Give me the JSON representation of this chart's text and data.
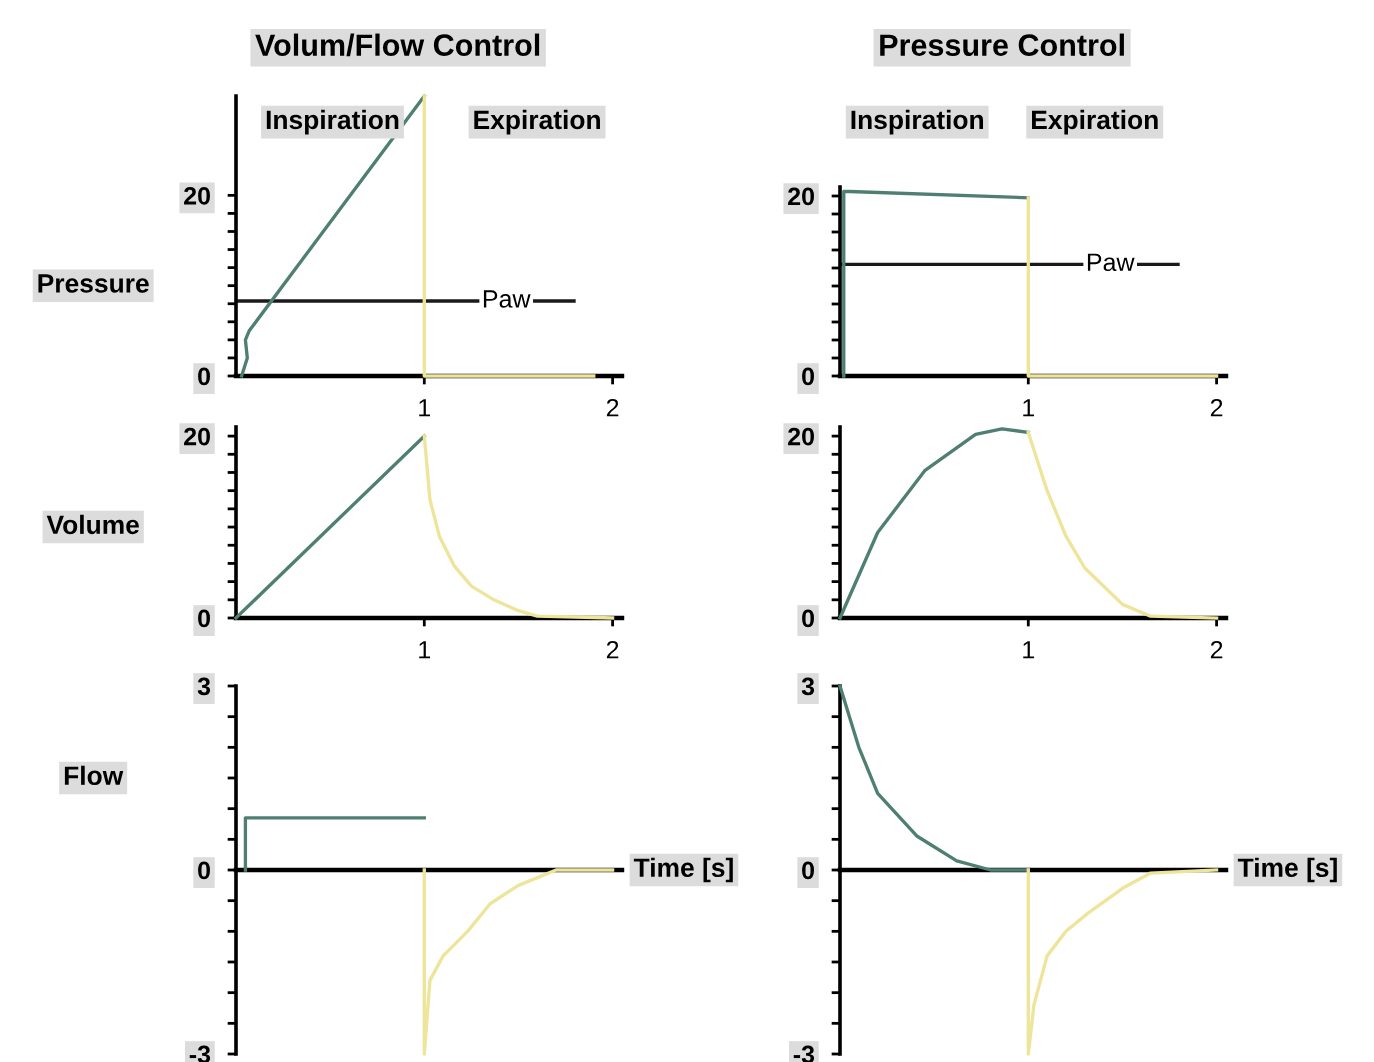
{
  "chart_data": [
    {
      "type": "line",
      "title": "Volum/Flow Control",
      "annotations": [
        "Inspiration",
        "Expiration"
      ],
      "ylabel": "Pressure",
      "xlim": [
        0,
        2.05
      ],
      "xticks": [
        1,
        2
      ],
      "ylim": [
        0,
        31
      ],
      "yticks": [
        0,
        {
          "value": 2,
          "label": null
        },
        {
          "value": 4,
          "label": null
        },
        {
          "value": 6,
          "label": null
        },
        {
          "value": 8,
          "label": null
        },
        {
          "value": 10,
          "label": null
        },
        {
          "value": 12,
          "label": null
        },
        {
          "value": 14,
          "label": null
        },
        {
          "value": 16,
          "label": null
        },
        {
          "value": 18,
          "label": null
        },
        20
      ],
      "ref_lines": [
        {
          "axis": "y",
          "value": 8.3,
          "label": "Paw",
          "color": "#1a1a1a"
        }
      ],
      "series": [
        {
          "color": "#4f7f73",
          "x": [
            0.03,
            0.06,
            0.05,
            0.07,
            1
          ],
          "values": [
            0,
            2,
            4,
            5,
            31
          ]
        },
        {
          "color": "#eee49a",
          "x": [
            1,
            1,
            1.9
          ],
          "values": [
            31,
            0,
            0
          ]
        }
      ]
    },
    {
      "type": "line",
      "title": "Pressure Control",
      "annotations": [
        "Inspiration",
        "Expiration"
      ],
      "xlim": [
        0,
        2.05
      ],
      "xticks": [
        1,
        2
      ],
      "ylim": [
        0,
        21
      ],
      "yticks": [
        0,
        {
          "value": 2,
          "label": null
        },
        {
          "value": 4,
          "label": null
        },
        {
          "value": 6,
          "label": null
        },
        {
          "value": 8,
          "label": null
        },
        {
          "value": 10,
          "label": null
        },
        {
          "value": 12,
          "label": null
        },
        {
          "value": 14,
          "label": null
        },
        {
          "value": 16,
          "label": null
        },
        {
          "value": 18,
          "label": null
        },
        20
      ],
      "ref_lines": [
        {
          "axis": "y",
          "value": 12.4,
          "label": "Paw",
          "color": "#1a1a1a"
        }
      ],
      "series": [
        {
          "color": "#4f7f73",
          "x": [
            0.02,
            0.02,
            0.05,
            1
          ],
          "values": [
            0,
            20.5,
            20.5,
            19.8
          ]
        },
        {
          "color": "#eee49a",
          "x": [
            1,
            1,
            2
          ],
          "values": [
            19.8,
            0,
            0
          ]
        }
      ]
    },
    {
      "type": "line",
      "ylabel": "Volume",
      "xlim": [
        0,
        2.05
      ],
      "xticks": [
        1,
        2
      ],
      "ylim": [
        0,
        21
      ],
      "yticks": [
        0,
        {
          "value": 2,
          "label": null
        },
        {
          "value": 4,
          "label": null
        },
        {
          "value": 6,
          "label": null
        },
        {
          "value": 8,
          "label": null
        },
        {
          "value": 10,
          "label": null
        },
        {
          "value": 12,
          "label": null
        },
        {
          "value": 14,
          "label": null
        },
        {
          "value": 16,
          "label": null
        },
        {
          "value": 18,
          "label": null
        },
        20
      ],
      "series": [
        {
          "color": "#4f7f73",
          "x": [
            0,
            1
          ],
          "values": [
            0,
            20
          ]
        },
        {
          "color": "#eee49a",
          "x": [
            1,
            1.03,
            1.08,
            1.16,
            1.25,
            1.37,
            1.5,
            1.6,
            2
          ],
          "values": [
            20,
            13,
            9,
            5.7,
            3.5,
            2,
            0.8,
            0.2,
            0
          ]
        }
      ]
    },
    {
      "type": "line",
      "xlim": [
        0,
        2.05
      ],
      "xticks": [
        1,
        2
      ],
      "ylim": [
        0,
        21
      ],
      "yticks": [
        0,
        {
          "value": 2,
          "label": null
        },
        {
          "value": 4,
          "label": null
        },
        {
          "value": 6,
          "label": null
        },
        {
          "value": 8,
          "label": null
        },
        {
          "value": 10,
          "label": null
        },
        {
          "value": 12,
          "label": null
        },
        {
          "value": 14,
          "label": null
        },
        {
          "value": 16,
          "label": null
        },
        {
          "value": 18,
          "label": null
        },
        20
      ],
      "series": [
        {
          "color": "#4f7f73",
          "x": [
            0,
            0.2,
            0.45,
            0.72,
            0.86,
            1
          ],
          "values": [
            0,
            9.4,
            16.2,
            20.2,
            20.8,
            20.4
          ]
        },
        {
          "color": "#eee49a",
          "x": [
            1,
            1.1,
            1.2,
            1.3,
            1.5,
            1.65,
            2
          ],
          "values": [
            20.4,
            14,
            9,
            5.5,
            1.5,
            0.2,
            0
          ]
        }
      ]
    },
    {
      "type": "line",
      "ylabel": "Flow",
      "xlabel": "Time [s]",
      "tick_labels": "y",
      "xlim": [
        0,
        2.05
      ],
      "ylim": [
        -3,
        3
      ],
      "yticks": [
        -3,
        {
          "value": -2.5,
          "label": null
        },
        {
          "value": -2,
          "label": null
        },
        {
          "value": -1.5,
          "label": null
        },
        {
          "value": -1,
          "label": null
        },
        {
          "value": -0.5,
          "label": null
        },
        0,
        {
          "value": 0.5,
          "label": null
        },
        {
          "value": 1,
          "label": null
        },
        {
          "value": 1.5,
          "label": null
        },
        {
          "value": 2,
          "label": null
        },
        {
          "value": 2.5,
          "label": null
        },
        3
      ],
      "series": [
        {
          "color": "#4f7f73",
          "x": [
            0.05,
            0.05,
            1
          ],
          "values": [
            0,
            0.85,
            0.85
          ]
        },
        {
          "color": "#eee49a",
          "x": [
            1,
            1,
            1.03,
            1.1,
            1.23,
            1.35,
            1.5,
            1.7,
            2
          ],
          "values": [
            0,
            -3,
            -1.8,
            -1.4,
            -1,
            -0.55,
            -0.25,
            0,
            0
          ]
        }
      ]
    },
    {
      "type": "line",
      "xlabel": "Time [s]",
      "tick_labels": "y",
      "xlim": [
        0,
        2.05
      ],
      "ylim": [
        -3,
        3
      ],
      "yticks": [
        -3,
        {
          "value": -2.5,
          "label": null
        },
        {
          "value": -2,
          "label": null
        },
        {
          "value": -1.5,
          "label": null
        },
        {
          "value": -1,
          "label": null
        },
        {
          "value": -0.5,
          "label": null
        },
        0,
        {
          "value": 0.5,
          "label": null
        },
        {
          "value": 1,
          "label": null
        },
        {
          "value": 1.5,
          "label": null
        },
        {
          "value": 2,
          "label": null
        },
        {
          "value": 2.5,
          "label": null
        },
        3
      ],
      "series": [
        {
          "color": "#4f7f73",
          "x": [
            0,
            0.05,
            0.1,
            0.2,
            0.41,
            0.62,
            0.8,
            1
          ],
          "values": [
            3,
            2.5,
            2,
            1.25,
            0.55,
            0.15,
            0,
            0
          ]
        },
        {
          "color": "#eee49a",
          "x": [
            1,
            1,
            1.03,
            1.1,
            1.2,
            1.31,
            1.51,
            1.65,
            2
          ],
          "values": [
            0,
            -3,
            -2.2,
            -1.4,
            -1,
            -0.72,
            -0.28,
            -0.05,
            0
          ]
        }
      ]
    }
  ]
}
